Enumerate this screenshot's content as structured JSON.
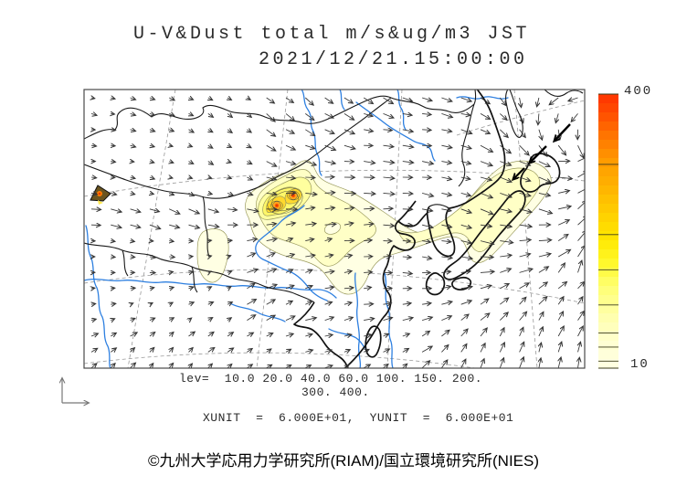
{
  "title": {
    "line1": "U-V&Dust total m/s&ug/m3 JST",
    "line2": "2021/12/21.15:00:00"
  },
  "colorbar": {
    "max_label": "400",
    "min_label": "10",
    "min": 10,
    "max": 400,
    "levels": [
      10,
      20,
      40,
      60,
      100,
      150,
      200,
      300,
      400
    ],
    "stops": [
      {
        "t": 0.0,
        "c": "#FFFFE4"
      },
      {
        "t": 0.1,
        "c": "#FFFFCF"
      },
      {
        "t": 0.2,
        "c": "#FFFFA8"
      },
      {
        "t": 0.3,
        "c": "#FFFF72"
      },
      {
        "t": 0.38,
        "c": "#FFF92E"
      },
      {
        "t": 0.47,
        "c": "#FFE800"
      },
      {
        "t": 0.56,
        "c": "#FFD000"
      },
      {
        "t": 0.65,
        "c": "#FFB600"
      },
      {
        "t": 0.75,
        "c": "#FF9C00"
      },
      {
        "t": 0.85,
        "c": "#FF7400"
      },
      {
        "t": 0.93,
        "c": "#FF4E00"
      },
      {
        "t": 1.0,
        "c": "#FF3300"
      }
    ]
  },
  "legend": {
    "lev_line1": "lev=  10.0 20.0 40.0 60.0 100. 150. 200.",
    "lev_line2": "300. 400.",
    "unit_label": "XUNIT  =  6.000E+01,  YUNIT  =  6.000E+01"
  },
  "footer": {
    "copyright": "©九州大学応用力学研究所(RIAM)/国立環境研究所(NIES)"
  },
  "chart_data": {
    "type": "map",
    "subtype": "wind-vector-and-dust-contour-map",
    "region": "East Asia (China, Mongolia, Korea, Japan)",
    "variable": "U-V & Dust total",
    "units": "m/s & ug/m3",
    "time_zone": "JST",
    "timestamp": "2021/12/21.15:00:00",
    "contour_levels": [
      10.0,
      20.0,
      40.0,
      60.0,
      100,
      150,
      200,
      300,
      400
    ],
    "colorbar_range": [
      10,
      400
    ],
    "colorbar_orientation": "vertical-right",
    "xunit": "6.000E+01",
    "yunit": "6.000E+01",
    "dust_palette": [
      "#FFFFE3",
      "#FFFFC6",
      "#FFFF9E",
      "#FFF768",
      "#FFD92E",
      "#FFA51F",
      "#FF5A00",
      "#E63900"
    ],
    "features": {
      "dust_plume": "main plume over Gobi/North China with two intense cores (~400 ug/m3), band extending east over Korea and the Sea of Japan to Hokkaido and northern Honshu",
      "secondary_spots": [
        "small intense spot near western map edge",
        "weak patch over eastern Tibet"
      ],
      "wind_field": "grid of wind vectors, westerly/northwesterly over the continent turning northeastward east of Japan"
    }
  }
}
